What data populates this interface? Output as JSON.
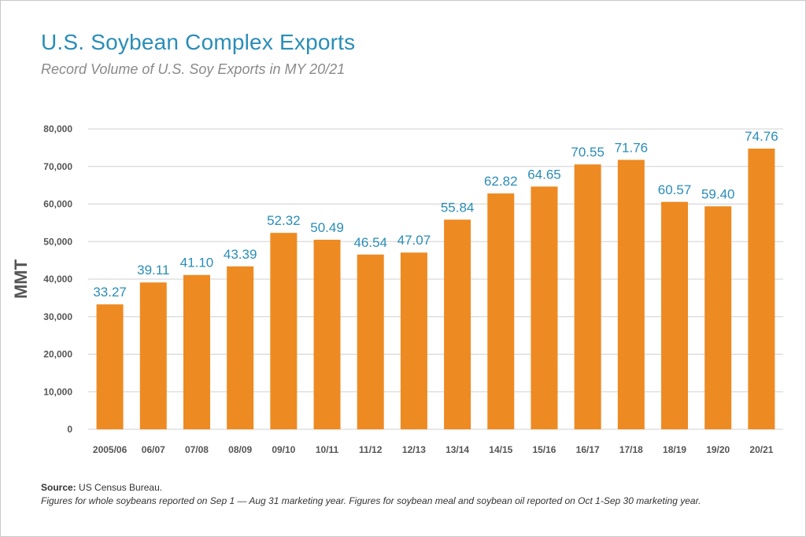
{
  "chart_data": {
    "type": "bar",
    "title": "U.S. Soybean Complex Exports",
    "subtitle": "Record Volume of U.S. Soy Exports in MY 20/21",
    "ylabel": "MMT",
    "xlabel": "",
    "ylim": [
      0,
      80000
    ],
    "yticks": [
      0,
      10000,
      20000,
      30000,
      40000,
      50000,
      60000,
      70000,
      80000
    ],
    "ytick_labels": [
      "0",
      "10,000",
      "20,000",
      "30,000",
      "40,000",
      "50,000",
      "60,000",
      "70,000",
      "80,000"
    ],
    "grid": true,
    "categories": [
      "2005/06",
      "06/07",
      "07/08",
      "08/09",
      "09/10",
      "10/11",
      "11/12",
      "12/13",
      "13/14",
      "14/15",
      "15/16",
      "16/17",
      "17/18",
      "18/19",
      "19/20",
      "20/21"
    ],
    "values": [
      33270,
      39110,
      41100,
      43390,
      52320,
      50490,
      46540,
      47070,
      55840,
      62820,
      64650,
      70550,
      71760,
      60570,
      59400,
      74760
    ],
    "data_labels": [
      "33.27",
      "39.11",
      "41.10",
      "43.39",
      "52.32",
      "50.49",
      "46.54",
      "47.07",
      "55.84",
      "62.82",
      "64.65",
      "70.55",
      "71.76",
      "60.57",
      "59.40",
      "74.76"
    ]
  },
  "colors": {
    "bar": "#ee8a22",
    "data_label": "#2a8db8",
    "title": "#2a8db8",
    "gridline": "#d0d0d0",
    "axis_text": "#555555"
  },
  "footer": {
    "source_label": "Source:",
    "source_text": " US Census Bureau.",
    "note": "Figures for whole soybeans reported on Sep 1 — Aug 31 marketing year. Figures for soybean meal and soybean oil reported on Oct 1-Sep 30 marketing year."
  }
}
